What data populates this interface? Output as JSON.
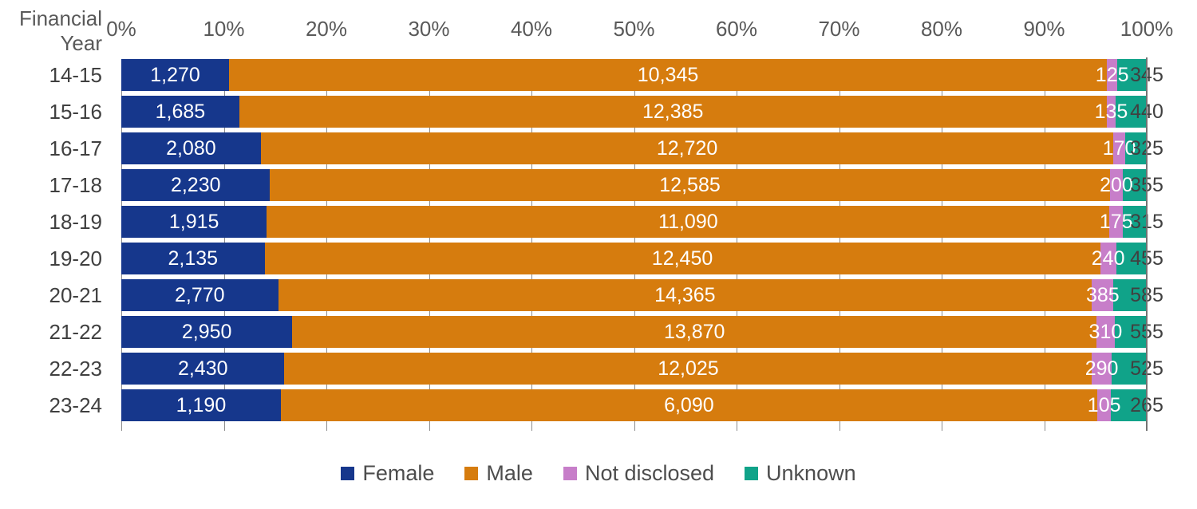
{
  "chart_data": {
    "type": "bar",
    "orientation": "horizontal",
    "stacked": "percent",
    "axis_title": "Financial Year",
    "x_ticks": [
      "0%",
      "10%",
      "20%",
      "30%",
      "40%",
      "50%",
      "60%",
      "70%",
      "80%",
      "90%",
      "100%"
    ],
    "x_range": [
      0,
      100
    ],
    "grid": true,
    "legend_position": "bottom",
    "categories": [
      "14-15",
      "15-16",
      "16-17",
      "17-18",
      "18-19",
      "19-20",
      "20-21",
      "21-22",
      "22-23",
      "23-24"
    ],
    "series": [
      {
        "name": "Female",
        "color": "#16378c",
        "label_style": "white-inside",
        "values": [
          1270,
          1685,
          2080,
          2230,
          1915,
          2135,
          2770,
          2950,
          2430,
          1190
        ]
      },
      {
        "name": "Male",
        "color": "#d67c0e",
        "label_style": "white-inside",
        "values": [
          10345,
          12385,
          12720,
          12585,
          11090,
          12450,
          14365,
          13870,
          12025,
          6090
        ]
      },
      {
        "name": "Not disclosed",
        "color": "#c77ec9",
        "label_style": "white-centered",
        "values": [
          125,
          135,
          170,
          200,
          175,
          240,
          385,
          310,
          290,
          105
        ]
      },
      {
        "name": "Unknown",
        "color": "#10a389",
        "label_style": "dark-at-axis",
        "values": [
          345,
          440,
          325,
          355,
          315,
          455,
          585,
          555,
          525,
          265
        ]
      }
    ]
  },
  "colors": {
    "axis_text": "#595959",
    "category_text": "#404040",
    "dark_value_label": "#404040",
    "white_value_label": "#ffffff",
    "gridline": "#8c8c8c",
    "axis_line": "#737373",
    "background": "#ffffff"
  }
}
